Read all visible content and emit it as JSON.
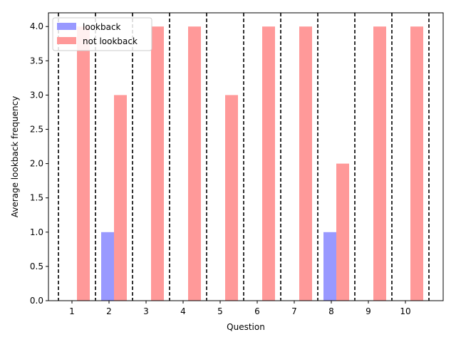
{
  "chart_data": {
    "type": "bar",
    "title": "",
    "xlabel": "Question",
    "ylabel": "Average lookback frequency",
    "categories": [
      "1",
      "2",
      "3",
      "4",
      "5",
      "6",
      "7",
      "8",
      "9",
      "10"
    ],
    "series": [
      {
        "name": "lookback",
        "color": "#9999ff",
        "values": [
          0,
          1,
          0,
          0,
          0,
          0,
          0,
          1,
          0,
          0
        ]
      },
      {
        "name": "not lookback",
        "color": "#ff9999",
        "values": [
          4,
          3,
          4,
          4,
          3,
          4,
          4,
          2,
          4,
          4
        ]
      }
    ],
    "ylim": [
      0,
      4.2
    ],
    "yticks": [
      "0.0",
      "0.5",
      "1.0",
      "1.5",
      "2.0",
      "2.5",
      "3.0",
      "3.5",
      "4.0"
    ],
    "separators": "dashed vertical lines between questions",
    "grid": false,
    "legend_position": "top-left"
  }
}
